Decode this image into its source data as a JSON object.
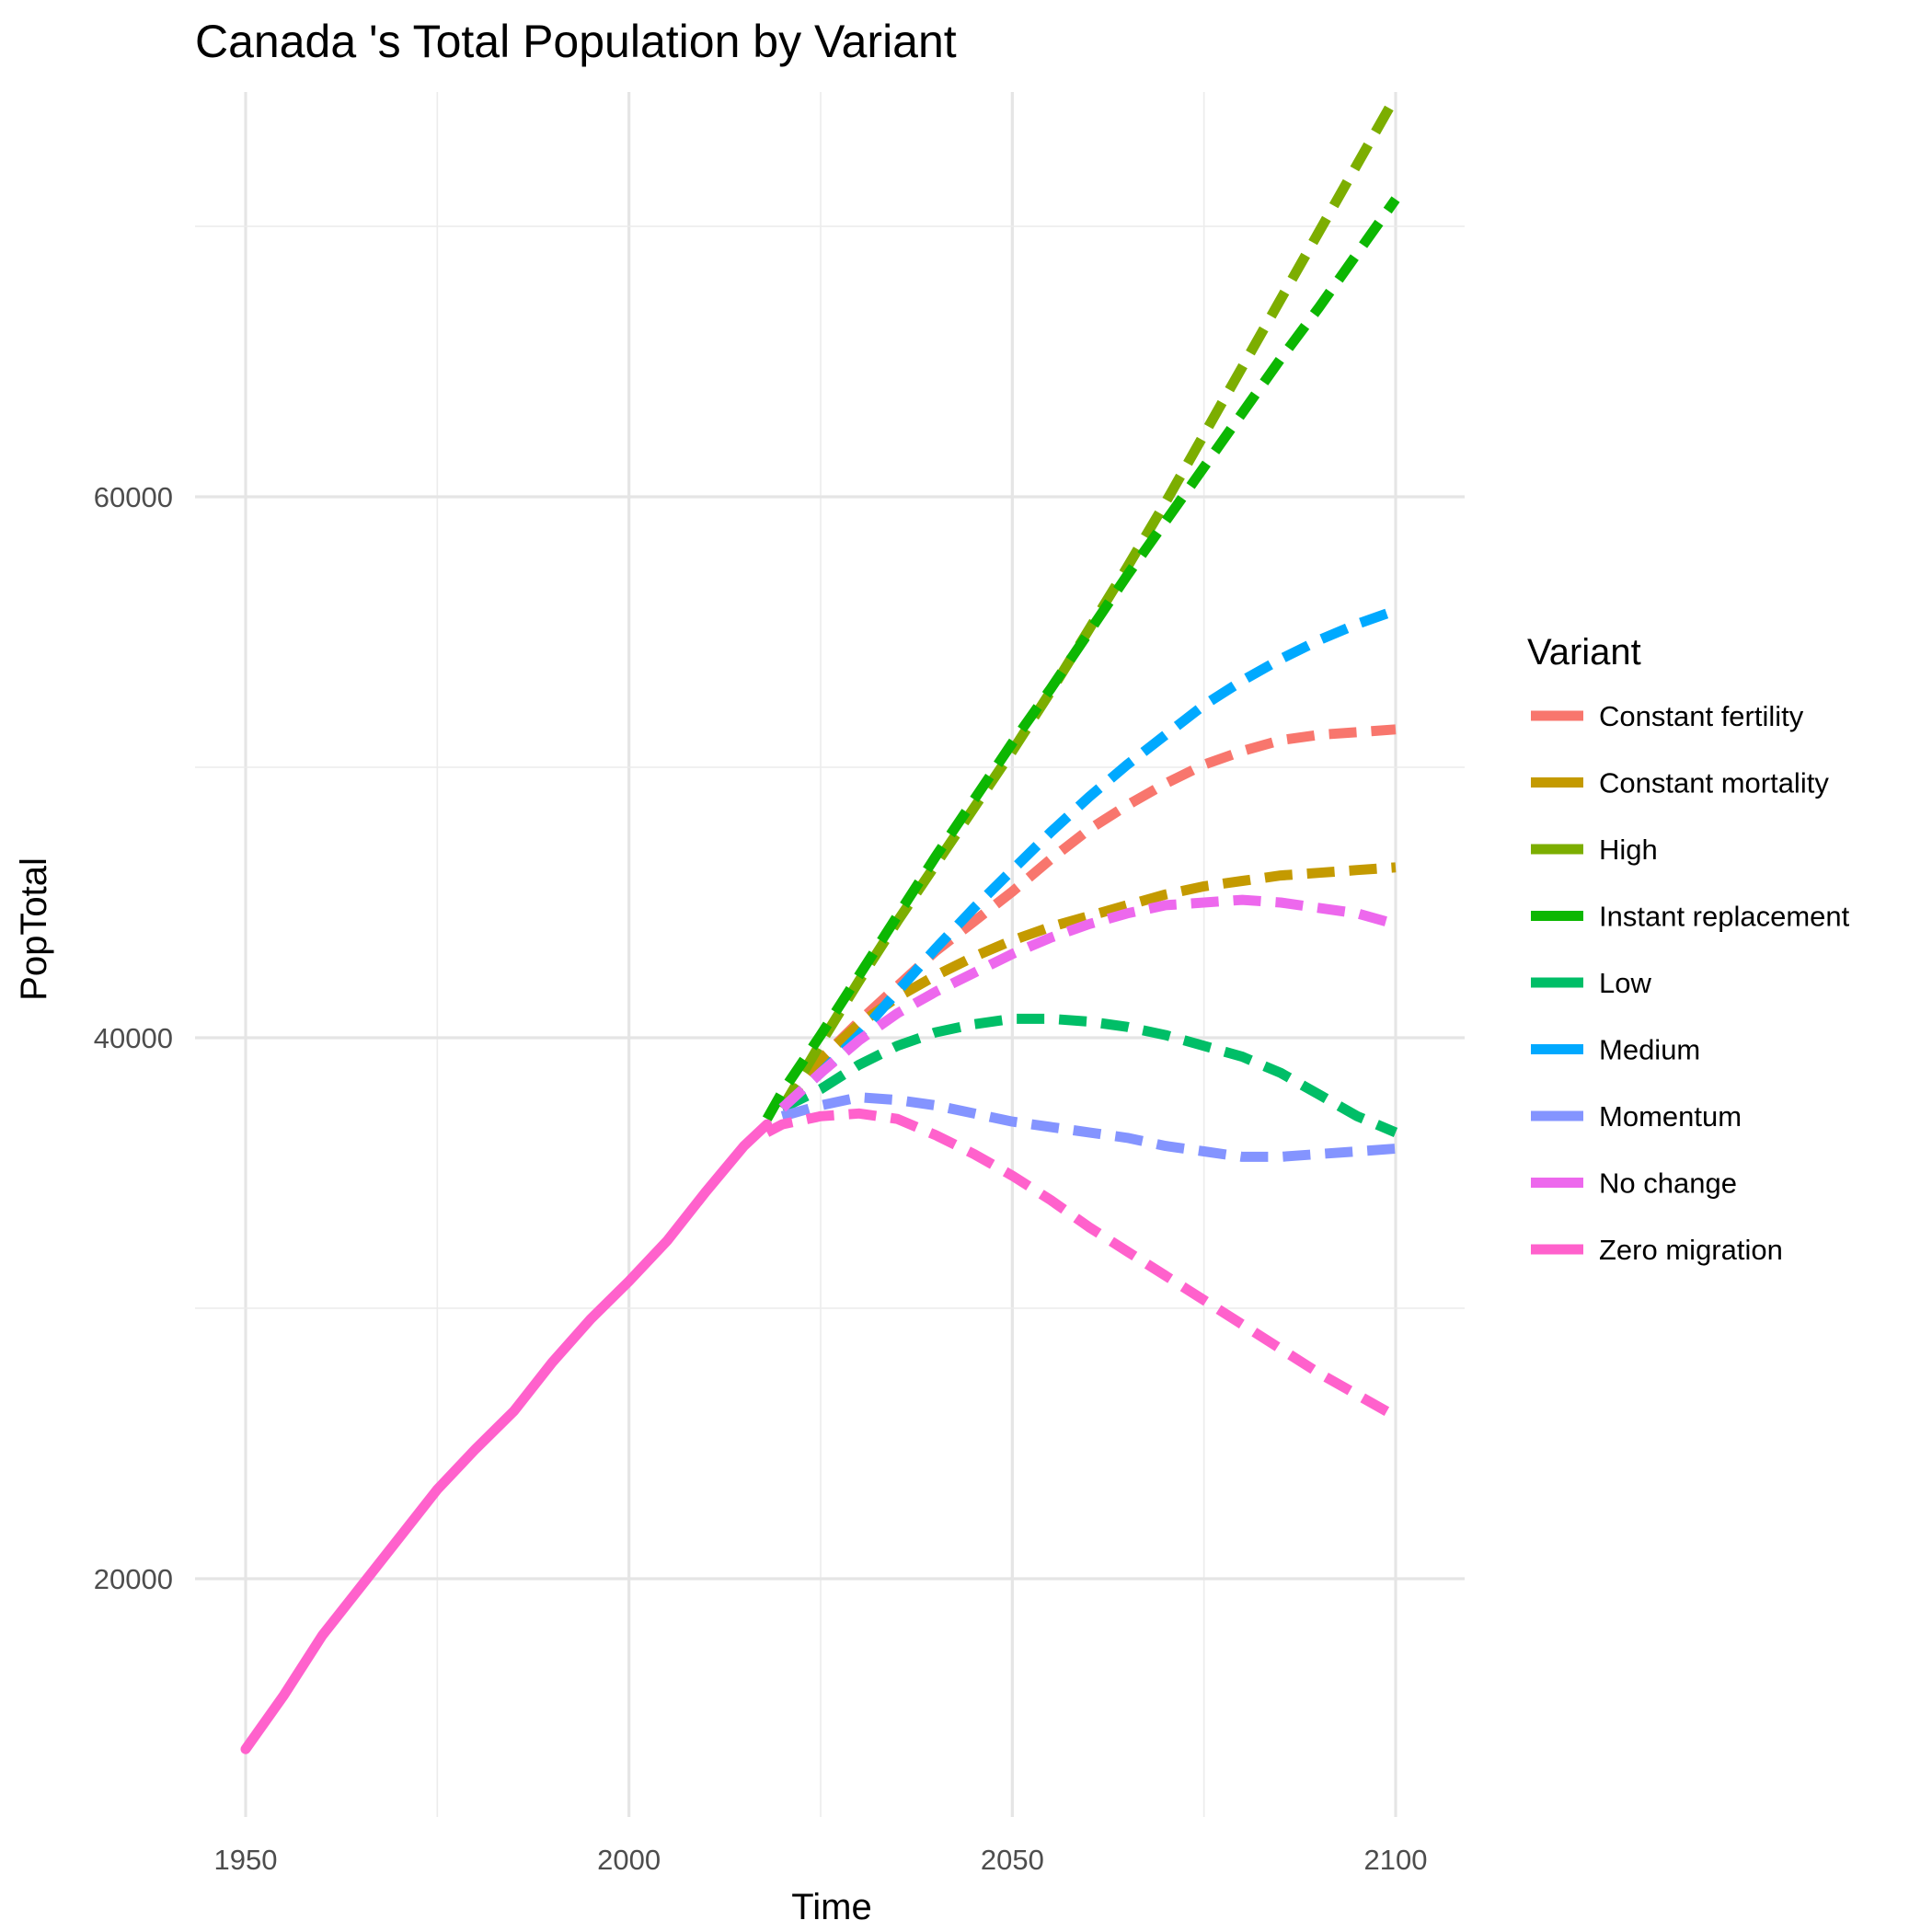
{
  "chart_data": {
    "type": "line",
    "title": "Canada 's Total Population by Variant",
    "xlabel": "Time",
    "ylabel": "PopTotal",
    "xlim": [
      1950,
      2100
    ],
    "ylim": [
      13800,
      78000
    ],
    "x_ticks": [
      1950,
      2000,
      2050,
      2100
    ],
    "y_ticks": [
      20000,
      40000,
      60000
    ],
    "grid": true,
    "legend": {
      "title": "Variant",
      "position": "right"
    },
    "series": [
      {
        "name": "Constant fertility",
        "color": "#F8766D",
        "dashed": true,
        "x": [
          2020,
          2025,
          2030,
          2035,
          2040,
          2045,
          2050,
          2055,
          2060,
          2065,
          2070,
          2075,
          2080,
          2085,
          2090,
          2095,
          2100
        ],
        "y": [
          37400,
          39200,
          40600,
          41900,
          43200,
          44300,
          45400,
          46600,
          47700,
          48600,
          49400,
          50100,
          50600,
          51000,
          51200,
          51300,
          51400
        ]
      },
      {
        "name": "Constant mortality",
        "color": "#C49A00",
        "dashed": true,
        "x": [
          2020,
          2025,
          2030,
          2035,
          2040,
          2045,
          2050,
          2055,
          2060,
          2065,
          2070,
          2075,
          2080,
          2085,
          2090,
          2095,
          2100
        ],
        "y": [
          37400,
          39200,
          40500,
          41500,
          42300,
          43000,
          43600,
          44100,
          44500,
          44900,
          45300,
          45600,
          45800,
          46000,
          46100,
          46200,
          46300
        ]
      },
      {
        "name": "High",
        "color": "#7CAE00",
        "dashed": true,
        "x": [
          2020,
          2025,
          2030,
          2035,
          2040,
          2045,
          2050,
          2055,
          2060,
          2065,
          2070,
          2075,
          2080,
          2085,
          2090,
          2095,
          2100
        ],
        "y": [
          37400,
          39800,
          42100,
          44300,
          46400,
          48500,
          50600,
          52800,
          55100,
          57400,
          59800,
          62300,
          64800,
          67300,
          69800,
          72300,
          74800
        ]
      },
      {
        "name": "Instant replacement",
        "color": "#0CB702",
        "dashed": true,
        "x": [
          2018,
          2020,
          2025,
          2030,
          2035,
          2040,
          2045,
          2050,
          2055,
          2060,
          2065,
          2070,
          2075,
          2080,
          2085,
          2090,
          2095,
          2100
        ],
        "y": [
          37000,
          38000,
          40100,
          42300,
          44500,
          46700,
          48800,
          50900,
          52900,
          55000,
          57100,
          59100,
          61100,
          63100,
          65100,
          67000,
          69000,
          71000
        ]
      },
      {
        "name": "Low",
        "color": "#00BE67",
        "dashed": true,
        "x": [
          2020,
          2025,
          2030,
          2035,
          2040,
          2045,
          2050,
          2055,
          2060,
          2065,
          2070,
          2075,
          2080,
          2085,
          2090,
          2095,
          2100
        ],
        "y": [
          37400,
          38100,
          39000,
          39700,
          40200,
          40500,
          40700,
          40700,
          40600,
          40400,
          40100,
          39700,
          39300,
          38700,
          37900,
          37100,
          36500
        ]
      },
      {
        "name": "Medium",
        "color": "#00A9FF",
        "dashed": true,
        "x": [
          2020,
          2025,
          2030,
          2035,
          2040,
          2045,
          2050,
          2055,
          2060,
          2065,
          2070,
          2075,
          2080,
          2085,
          2090,
          2095,
          2100
        ],
        "y": [
          37400,
          38700,
          40100,
          41700,
          43300,
          44800,
          46200,
          47600,
          48900,
          50100,
          51200,
          52300,
          53200,
          54000,
          54700,
          55300,
          55800
        ]
      },
      {
        "name": "Momentum",
        "color": "#8494FF",
        "dashed": true,
        "x": [
          2020,
          2025,
          2030,
          2035,
          2040,
          2045,
          2050,
          2055,
          2060,
          2065,
          2070,
          2075,
          2080,
          2085,
          2090,
          2095,
          2100
        ],
        "y": [
          37100,
          37500,
          37800,
          37700,
          37500,
          37200,
          36900,
          36700,
          36500,
          36300,
          36000,
          35800,
          35600,
          35600,
          35700,
          35800,
          35900
        ]
      },
      {
        "name": "No change",
        "color": "#ED68ED",
        "dashed": true,
        "x": [
          2020,
          2025,
          2030,
          2035,
          2040,
          2045,
          2050,
          2055,
          2060,
          2065,
          2070,
          2075,
          2080,
          2085,
          2090,
          2095,
          2100
        ],
        "y": [
          37400,
          38700,
          39900,
          40900,
          41700,
          42400,
          43100,
          43700,
          44200,
          44600,
          44900,
          45000,
          45100,
          45000,
          44800,
          44600,
          44200
        ]
      },
      {
        "name": "Zero migration",
        "color": "#FF61CC",
        "dashed": true,
        "x": [
          2018,
          2020,
          2025,
          2030,
          2035,
          2040,
          2045,
          2050,
          2055,
          2060,
          2065,
          2070,
          2075,
          2080,
          2085,
          2090,
          2095,
          2100
        ],
        "y": [
          36500,
          36800,
          37100,
          37200,
          37000,
          36400,
          35700,
          34900,
          34000,
          33000,
          32100,
          31200,
          30300,
          29400,
          28500,
          27600,
          26800,
          26000
        ]
      },
      {
        "name": "Zero migration",
        "color": "#FF61CC",
        "dashed": false,
        "historical": true,
        "x": [
          1950,
          1955,
          1960,
          1965,
          1970,
          1975,
          1980,
          1985,
          1990,
          1995,
          2000,
          2005,
          2010,
          2015,
          2018
        ],
        "y": [
          13700,
          15700,
          17900,
          19700,
          21500,
          23300,
          24800,
          26200,
          28000,
          29600,
          31000,
          32500,
          34300,
          36000,
          36800
        ]
      }
    ]
  }
}
